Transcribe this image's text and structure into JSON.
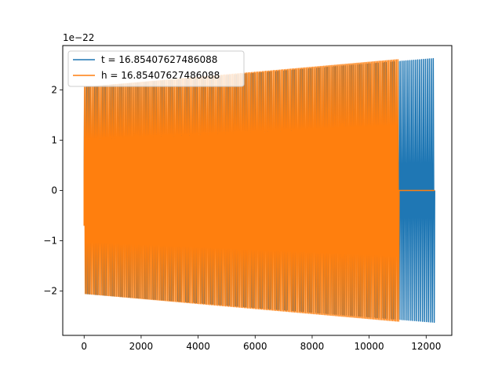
{
  "chart_data": {
    "type": "line",
    "title": "",
    "xlabel": "",
    "ylabel": "",
    "y_offset_label": "1e−22",
    "xlim": [
      -750,
      12900
    ],
    "ylim": [
      -2.88,
      2.88
    ],
    "x_ticks": [
      0,
      2000,
      4000,
      6000,
      8000,
      10000,
      12000
    ],
    "x_tick_labels": [
      "0",
      "2000",
      "4000",
      "6000",
      "8000",
      "10000",
      "12000"
    ],
    "y_ticks": [
      -2,
      -1,
      0,
      1,
      2
    ],
    "y_tick_labels": [
      "−2",
      "−1",
      "0",
      "1",
      "2"
    ],
    "grid": false,
    "legend_position": "top-left",
    "series": [
      {
        "name": "t = 16.85407627486088",
        "color": "#1f77b4",
        "x_range": [
          0,
          12300
        ],
        "cycle_count": 180,
        "amplitude_start": 2.05,
        "amplitude_end": 2.62,
        "trailing_zero_from": null
      },
      {
        "name": "h = 16.85407627486088",
        "color": "#ff7f0e",
        "x_range": [
          0,
          12300
        ],
        "cycle_count": 200,
        "amplitude_start": 2.05,
        "amplitude_end": 2.6,
        "trailing_zero_from": 11050
      }
    ]
  }
}
